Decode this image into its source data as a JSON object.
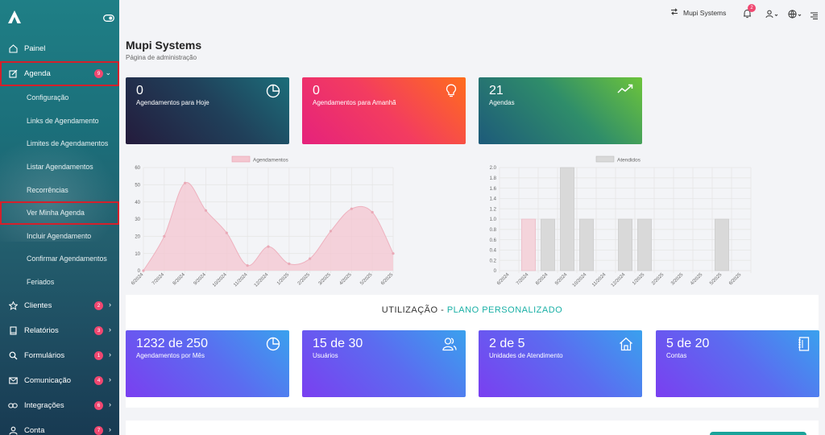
{
  "sidebar": {
    "items": [
      {
        "label": "Painel",
        "icon": "home-icon"
      },
      {
        "label": "Agenda",
        "icon": "edit-icon",
        "badge": "9"
      },
      {
        "label": "Clientes",
        "icon": "star-icon",
        "badge": "2"
      },
      {
        "label": "Relatórios",
        "icon": "book-icon",
        "badge": "3"
      },
      {
        "label": "Formulários",
        "icon": "search-icon",
        "badge": "1"
      },
      {
        "label": "Comunicação",
        "icon": "mail-icon",
        "badge": "4"
      },
      {
        "label": "Integrações",
        "icon": "link-icon",
        "badge": "6"
      },
      {
        "label": "Conta",
        "icon": "user-icon",
        "badge": "7"
      }
    ],
    "agenda_sub": [
      "Configuração",
      "Links de Agendamento",
      "Limites de Agendamentos",
      "Listar Agendamentos",
      "Recorrências",
      "Ver Minha Agenda",
      "Incluir Agendamento",
      "Confirmar Agendamentos",
      "Feriados"
    ]
  },
  "topbar": {
    "company": "Mupi Systems",
    "notifications": "2"
  },
  "header": {
    "title": "Mupi Systems",
    "subtitle": "Página de administração"
  },
  "stats": [
    {
      "value": "0",
      "label": "Agendamentos para Hoje",
      "icon": "pie-icon"
    },
    {
      "value": "0",
      "label": "Agendamentos para Amanhã",
      "icon": "bulb-icon"
    },
    {
      "value": "21",
      "label": "Agendas",
      "icon": "trend-icon"
    }
  ],
  "chart_data": [
    {
      "type": "area",
      "legend": "Agendamentos",
      "categories": [
        "6/2024",
        "7/2024",
        "8/2024",
        "9/2024",
        "10/2024",
        "11/2024",
        "12/2024",
        "1/2025",
        "2/2025",
        "3/2025",
        "4/2025",
        "5/2025",
        "6/2025"
      ],
      "values": [
        0,
        20,
        51,
        35,
        22,
        3,
        14,
        4,
        7,
        23,
        36,
        34,
        10
      ],
      "ylim": [
        0,
        60
      ],
      "yticks": [
        0,
        10,
        20,
        30,
        40,
        50,
        60
      ],
      "color": "#f4c6d0"
    },
    {
      "type": "bar",
      "legend": "Atendidos",
      "categories": [
        "6/2024",
        "7/2024",
        "8/2024",
        "9/2024",
        "10/2024",
        "11/2024",
        "12/2024",
        "1/2025",
        "2/2025",
        "3/2025",
        "4/2025",
        "5/2025",
        "6/2025"
      ],
      "values": [
        0,
        1.0,
        1.0,
        2.0,
        1.0,
        0,
        1.0,
        1.0,
        0,
        0,
        0,
        1.0,
        0
      ],
      "ylim": [
        0,
        2.0
      ],
      "yticks": [
        "0",
        "0.2",
        "0.4",
        "0.6",
        "0.8",
        "1.0",
        "1.2",
        "1.4",
        "1.6",
        "1.8",
        "2.0"
      ],
      "color": "#d9d9d9"
    }
  ],
  "usage": {
    "title": "UTILIZAÇÃO - ",
    "plan": "PLANO PERSONALIZADO",
    "cards": [
      {
        "value": "1232 de 250",
        "label": "Agendamentos por Mês",
        "icon": "pie-icon"
      },
      {
        "value": "15 de 30",
        "label": "Usuários",
        "icon": "users-icon"
      },
      {
        "value": "2 de 5",
        "label": "Unidades de Atendimento",
        "icon": "house-icon"
      },
      {
        "value": "5 de 20",
        "label": "Contas",
        "icon": "notebook-icon"
      }
    ]
  }
}
